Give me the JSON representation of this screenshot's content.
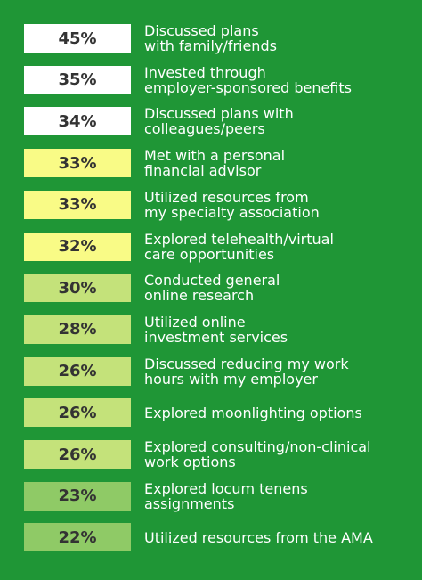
{
  "colors": {
    "background": "#1f9636",
    "text": "#ffffff",
    "badge_text": "#333333",
    "tier_white": "#ffffff",
    "tier_yellow": "#f9fb86",
    "tier_light_green": "#c4e27a",
    "tier_mid_green": "#8fca66"
  },
  "chart_data": {
    "type": "table",
    "unit": "%",
    "rows": [
      {
        "value": 45,
        "display": "45%",
        "label_lines": [
          "Discussed plans",
          "with family/friends"
        ],
        "color": "#ffffff"
      },
      {
        "value": 35,
        "display": "35%",
        "label_lines": [
          "Invested through",
          "employer-sponsored benefits"
        ],
        "color": "#ffffff"
      },
      {
        "value": 34,
        "display": "34%",
        "label_lines": [
          "Discussed plans with",
          "colleagues/peers"
        ],
        "color": "#ffffff"
      },
      {
        "value": 33,
        "display": "33%",
        "label_lines": [
          "Met with a personal",
          "financial advisor"
        ],
        "color": "#f9fb86"
      },
      {
        "value": 33,
        "display": "33%",
        "label_lines": [
          "Utilized resources from",
          "my specialty association"
        ],
        "color": "#f9fb86"
      },
      {
        "value": 32,
        "display": "32%",
        "label_lines": [
          "Explored telehealth/virtual",
          "care opportunities"
        ],
        "color": "#f9fb86"
      },
      {
        "value": 30,
        "display": "30%",
        "label_lines": [
          "Conducted general",
          "online research"
        ],
        "color": "#c4e27a"
      },
      {
        "value": 28,
        "display": "28%",
        "label_lines": [
          "Utilized online",
          "investment services"
        ],
        "color": "#c4e27a"
      },
      {
        "value": 26,
        "display": "26%",
        "label_lines": [
          "Discussed reducing my work",
          "hours with my employer"
        ],
        "color": "#c4e27a"
      },
      {
        "value": 26,
        "display": "26%",
        "label_lines": [
          "Explored moonlighting options"
        ],
        "color": "#c4e27a"
      },
      {
        "value": 26,
        "display": "26%",
        "label_lines": [
          "Explored consulting/non-clinical",
          "work options"
        ],
        "color": "#c4e27a"
      },
      {
        "value": 23,
        "display": "23%",
        "label_lines": [
          "Explored locum tenens",
          "assignments"
        ],
        "color": "#8fca66"
      },
      {
        "value": 22,
        "display": "22%",
        "label_lines": [
          "Utilized resources from the AMA"
        ],
        "color": "#8fca66"
      }
    ]
  }
}
